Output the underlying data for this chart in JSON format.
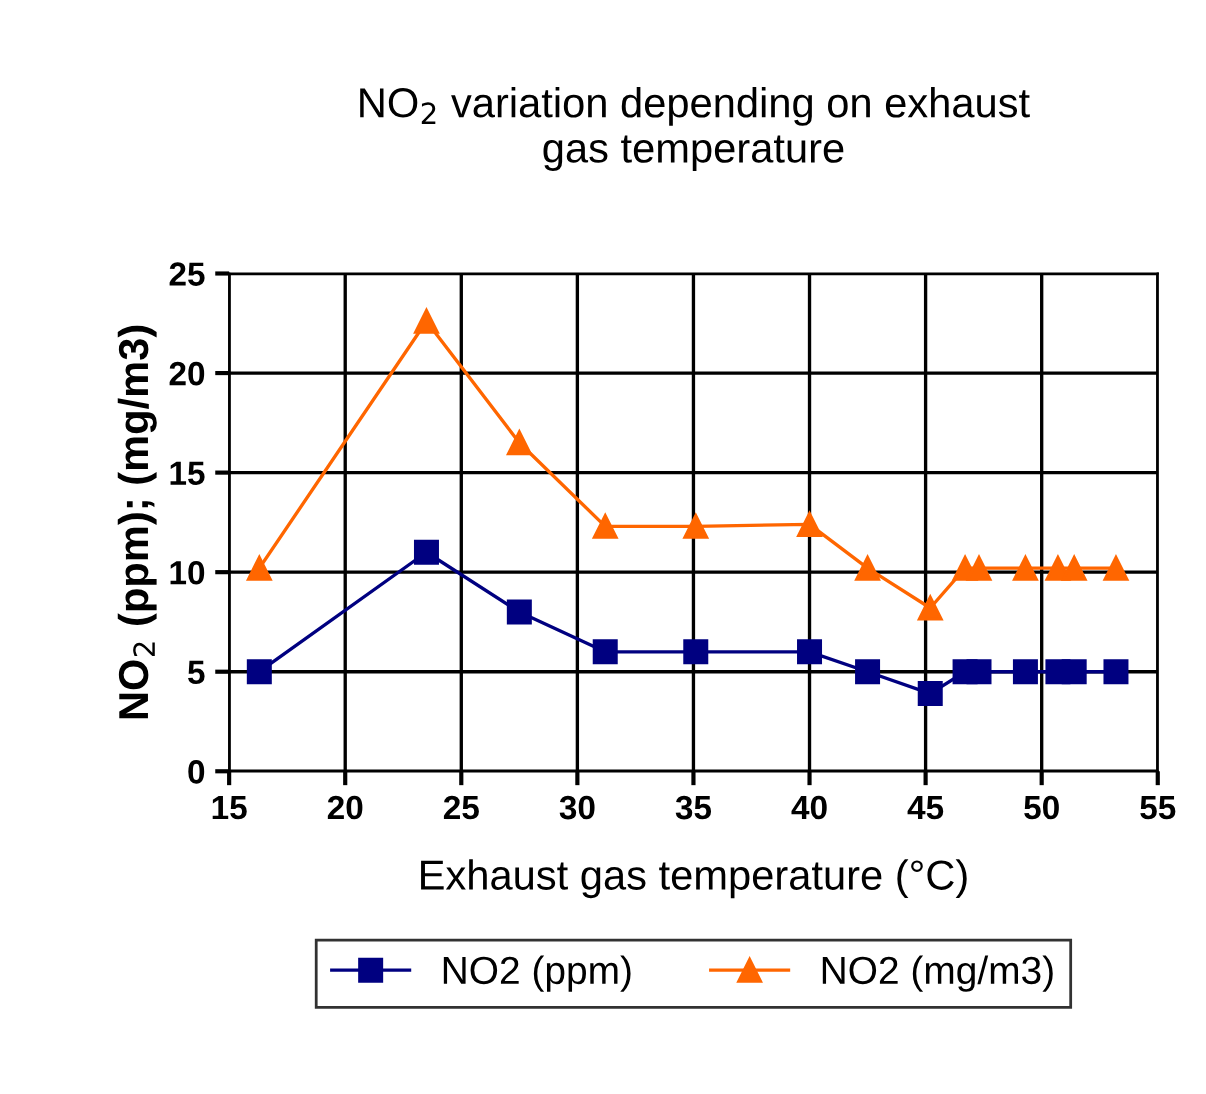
{
  "chart_data": {
    "type": "line",
    "title": "NO$_{2}$ variation depending on exhaust\ngas temperature",
    "xlabel": "Exhaust gas temperature (°C)",
    "ylabel": "NO$_{2}$ (ppm); (mg/m3)",
    "x": [
      16.3,
      23.5,
      27.5,
      31.2,
      35.1,
      40,
      42.5,
      45.2,
      46.7,
      47.3,
      49.3,
      50.7,
      51.4,
      53.2
    ],
    "series": [
      {
        "name": "NO2 (ppm)",
        "color": "#000080",
        "marker": "square",
        "values": [
          5,
          11,
          8,
          6,
          6,
          6,
          5,
          3.9,
          5,
          5,
          5,
          5,
          5,
          5
        ]
      },
      {
        "name": "NO2 (mg/m3)",
        "color": "#ff6600",
        "marker": "triangle",
        "values": [
          10.2,
          22.6,
          16.5,
          12.3,
          12.3,
          12.4,
          10.2,
          8.2,
          10.2,
          10.2,
          10.2,
          10.2,
          10.2,
          10.2
        ]
      }
    ],
    "xlim": [
      15,
      55
    ],
    "xticks": [
      15,
      20,
      25,
      30,
      35,
      40,
      45,
      50,
      55
    ],
    "ylim": [
      0,
      25
    ],
    "yticks": [
      0,
      5,
      10,
      15,
      20,
      25
    ],
    "grid": true,
    "legend": "bottom",
    "line_style": "solid"
  }
}
